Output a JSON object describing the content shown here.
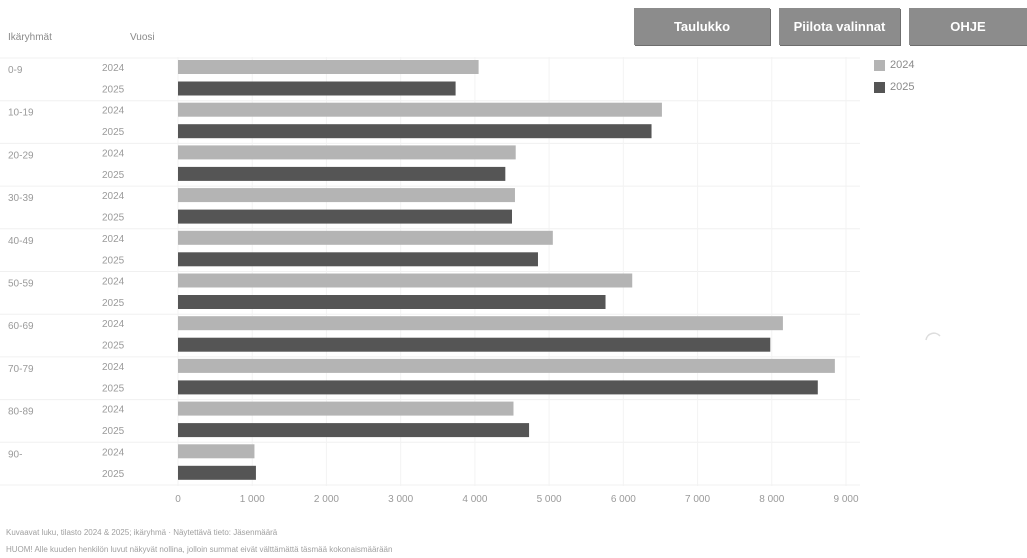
{
  "toolbar": {
    "table_label": "Taulukko",
    "hide_selections_label": "Piilota valinnat",
    "help_label": "OHJE"
  },
  "headers": {
    "group_col": "Ikäryhmät",
    "year_col": "Vuosi"
  },
  "legend": [
    {
      "label": "2024",
      "color": "#b4b4b4"
    },
    {
      "label": "2025",
      "color": "#555555"
    }
  ],
  "footnotes": {
    "line1": "Kuvaavat luku, tilasto 2024 & 2025; ikäryhmä · Näytettävä tieto: Jäsenmäärä",
    "line2": "HUOM! Alle kuuden henkilön luvut näkyvät nollina, jolloin summat eivät välttämättä täsmää kokonaismäärään"
  },
  "chart_data": {
    "type": "bar",
    "orientation": "horizontal",
    "categories": [
      "0-9",
      "10-19",
      "20-29",
      "30-39",
      "40-49",
      "50-59",
      "60-69",
      "70-79",
      "80-89",
      "90-"
    ],
    "series": [
      {
        "name": "2024",
        "color": "#b4b4b4",
        "values": [
          4050,
          6520,
          4550,
          4540,
          5050,
          6120,
          8150,
          8850,
          4520,
          1030
        ]
      },
      {
        "name": "2025",
        "color": "#555555",
        "values": [
          3740,
          6380,
          4410,
          4500,
          4850,
          5760,
          7980,
          8620,
          4730,
          1050
        ]
      }
    ],
    "xticks": [
      "0",
      "1 000",
      "2 000",
      "3 000",
      "4 000",
      "5 000",
      "6 000",
      "7 000",
      "8 000",
      "9 000"
    ],
    "xlim": [
      0,
      9000
    ],
    "legend_position": "top-right",
    "grid": true
  }
}
